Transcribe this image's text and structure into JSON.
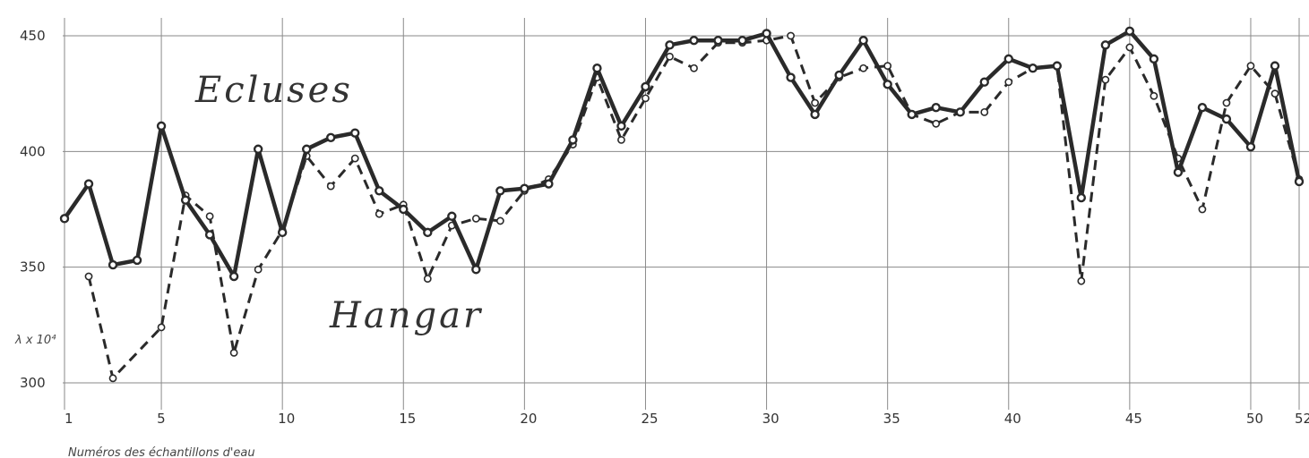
{
  "chart_data": {
    "type": "line",
    "title": "",
    "xlabel": "Numéros des échantillons d'eau",
    "ylabel": "λ x 10⁴",
    "xlim": [
      1,
      52
    ],
    "ylim": [
      300,
      450
    ],
    "x_ticks": [
      1,
      5,
      10,
      15,
      20,
      25,
      30,
      35,
      40,
      45,
      50,
      52
    ],
    "x_tick_labels": [
      "1",
      "5",
      "10",
      "15",
      "20",
      "25",
      "30",
      "35",
      "40",
      "45",
      "50",
      "52"
    ],
    "y_ticks": [
      300,
      350,
      400,
      450
    ],
    "y_tick_labels": [
      "300",
      "350",
      "400",
      "450"
    ],
    "grid": true,
    "series": [
      {
        "name": "Ecluses",
        "style": "solid",
        "color": "#2a2a2a",
        "points": [
          [
            1,
            371
          ],
          [
            2,
            386
          ],
          [
            3,
            351
          ],
          [
            4,
            353
          ],
          [
            5,
            411
          ],
          [
            6,
            379
          ],
          [
            7,
            364
          ],
          [
            8,
            346
          ],
          [
            9,
            401
          ],
          [
            10,
            365
          ],
          [
            11,
            401
          ],
          [
            12,
            406
          ],
          [
            13,
            408
          ],
          [
            14,
            383
          ],
          [
            15,
            375
          ],
          [
            16,
            365
          ],
          [
            17,
            372
          ],
          [
            18,
            349
          ],
          [
            19,
            383
          ],
          [
            20,
            384
          ],
          [
            21,
            386
          ],
          [
            22,
            405
          ],
          [
            23,
            436
          ],
          [
            24,
            411
          ],
          [
            25,
            428
          ],
          [
            26,
            446
          ],
          [
            27,
            448
          ],
          [
            28,
            448
          ],
          [
            29,
            448
          ],
          [
            30,
            451
          ],
          [
            31,
            432
          ],
          [
            32,
            416
          ],
          [
            33,
            433
          ],
          [
            34,
            448
          ],
          [
            35,
            429
          ],
          [
            36,
            416
          ],
          [
            37,
            419
          ],
          [
            38,
            417
          ],
          [
            39,
            430
          ],
          [
            40,
            440
          ],
          [
            41,
            436
          ],
          [
            42,
            437
          ],
          [
            43,
            380
          ],
          [
            44,
            446
          ],
          [
            45,
            452
          ],
          [
            46,
            440
          ],
          [
            47,
            391
          ],
          [
            48,
            419
          ],
          [
            49,
            414
          ],
          [
            50,
            402
          ],
          [
            51,
            437
          ],
          [
            52,
            387
          ]
        ]
      },
      {
        "name": "Hangar",
        "style": "dashed",
        "color": "#2a2a2a",
        "points": [
          [
            2,
            346
          ],
          [
            3,
            302
          ],
          [
            5,
            324
          ],
          [
            6,
            381
          ],
          [
            7,
            372
          ],
          [
            8,
            313
          ],
          [
            9,
            349
          ],
          [
            10,
            366
          ],
          [
            11,
            398
          ],
          [
            12,
            385
          ],
          [
            13,
            397
          ],
          [
            14,
            373
          ],
          [
            15,
            377
          ],
          [
            16,
            345
          ],
          [
            17,
            368
          ],
          [
            18,
            371
          ],
          [
            19,
            370
          ],
          [
            20,
            383
          ],
          [
            21,
            388
          ],
          [
            22,
            403
          ],
          [
            23,
            432
          ],
          [
            24,
            405
          ],
          [
            25,
            423
          ],
          [
            26,
            441
          ],
          [
            27,
            436
          ],
          [
            28,
            447
          ],
          [
            29,
            447
          ],
          [
            30,
            448
          ],
          [
            31,
            450
          ],
          [
            32,
            421
          ],
          [
            33,
            432
          ],
          [
            34,
            436
          ],
          [
            35,
            437
          ],
          [
            36,
            416
          ],
          [
            37,
            412
          ],
          [
            38,
            417
          ],
          [
            39,
            417
          ],
          [
            40,
            430
          ],
          [
            41,
            436
          ],
          [
            42,
            437
          ],
          [
            43,
            344
          ],
          [
            44,
            431
          ],
          [
            45,
            445
          ],
          [
            46,
            424
          ],
          [
            47,
            397
          ],
          [
            48,
            375
          ],
          [
            49,
            421
          ],
          [
            50,
            437
          ],
          [
            51,
            425
          ],
          [
            52,
            388
          ]
        ]
      }
    ]
  }
}
